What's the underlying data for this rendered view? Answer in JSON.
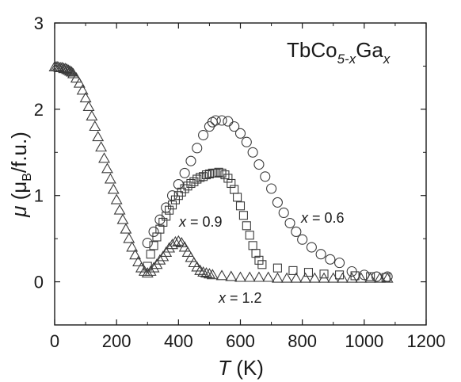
{
  "chart_data": {
    "type": "scatter",
    "title_parts": {
      "main": "TbCo",
      "sub1": "5-x",
      "main2": "Ga",
      "sub2": "x"
    },
    "xlabel": {
      "symbol": "T",
      "unit": " (K)"
    },
    "ylabel": {
      "symbol": "μ",
      "open": " (μ",
      "sub": "B",
      "close": "/f.u.)"
    },
    "xlim": [
      0,
      1200
    ],
    "ylim": [
      -0.5,
      3.0
    ],
    "xticks": [
      "0",
      "200",
      "400",
      "600",
      "800",
      "1000",
      "1200"
    ],
    "yticks": [
      "0",
      "1",
      "2",
      "3"
    ],
    "xtick_values": [
      0,
      200,
      400,
      600,
      800,
      1000,
      1200
    ],
    "ytick_values": [
      0,
      1,
      2,
      3
    ],
    "grid": false,
    "annotations": {
      "x06": {
        "var": "x",
        "text": " = 0.6"
      },
      "x09": {
        "var": "x",
        "text": " = 0.9"
      },
      "x12": {
        "var": "x",
        "text": " = 1.2"
      }
    },
    "series": [
      {
        "label": "x = 0.6",
        "marker": "circle",
        "x": [
          300,
          320,
          340,
          360,
          380,
          400,
          420,
          440,
          460,
          480,
          500,
          510,
          520,
          540,
          560,
          580,
          600,
          620,
          640,
          660,
          680,
          700,
          720,
          740,
          760,
          780,
          800,
          830,
          860,
          890,
          920,
          960,
          1000,
          1040,
          1075
        ],
        "y": [
          0.45,
          0.58,
          0.72,
          0.86,
          1.0,
          1.13,
          1.26,
          1.4,
          1.55,
          1.7,
          1.8,
          1.85,
          1.87,
          1.87,
          1.86,
          1.8,
          1.72,
          1.62,
          1.5,
          1.36,
          1.22,
          1.08,
          0.92,
          0.8,
          0.68,
          0.58,
          0.49,
          0.4,
          0.32,
          0.26,
          0.22,
          0.12,
          0.08,
          0.06,
          0.06
        ]
      },
      {
        "label": "x = 0.9",
        "marker": "square",
        "x": [
          300,
          310,
          320,
          330,
          340,
          350,
          360,
          370,
          380,
          390,
          400,
          410,
          420,
          430,
          440,
          450,
          460,
          470,
          480,
          490,
          500,
          510,
          520,
          530,
          540,
          550,
          560,
          570,
          580,
          590,
          600,
          610,
          620,
          630,
          640,
          650,
          660,
          670,
          720,
          770,
          820,
          870,
          920,
          970,
          1020,
          1070
        ],
        "y": [
          0.18,
          0.32,
          0.42,
          0.52,
          0.61,
          0.69,
          0.76,
          0.83,
          0.89,
          0.95,
          1.0,
          1.04,
          1.08,
          1.11,
          1.14,
          1.16,
          1.19,
          1.21,
          1.22,
          1.24,
          1.25,
          1.26,
          1.26,
          1.27,
          1.26,
          1.24,
          1.2,
          1.14,
          1.07,
          0.98,
          0.88,
          0.77,
          0.65,
          0.54,
          0.42,
          0.33,
          0.25,
          0.2,
          0.16,
          0.13,
          0.11,
          0.09,
          0.08,
          0.07,
          0.06,
          0.05
        ]
      },
      {
        "label": "x = 1.2",
        "marker": "triangle",
        "x": [
          0,
          5,
          10,
          15,
          20,
          25,
          30,
          35,
          40,
          45,
          50,
          55,
          60,
          70,
          80,
          90,
          100,
          110,
          120,
          130,
          140,
          150,
          160,
          170,
          180,
          190,
          200,
          210,
          220,
          230,
          240,
          250,
          260,
          270,
          280,
          290,
          300,
          310,
          320,
          330,
          340,
          350,
          360,
          370,
          380,
          390,
          400,
          410,
          420,
          430,
          440,
          450,
          460,
          470,
          480,
          490,
          500,
          510,
          540,
          570,
          600,
          630,
          660,
          690,
          720,
          750,
          780,
          810,
          840,
          870,
          900,
          930,
          960,
          990,
          1020,
          1050,
          1075
        ],
        "y": [
          2.49,
          2.49,
          2.49,
          2.48,
          2.48,
          2.48,
          2.47,
          2.47,
          2.46,
          2.45,
          2.44,
          2.43,
          2.41,
          2.36,
          2.3,
          2.22,
          2.13,
          2.03,
          1.92,
          1.8,
          1.68,
          1.56,
          1.43,
          1.31,
          1.19,
          1.07,
          0.95,
          0.83,
          0.72,
          0.61,
          0.5,
          0.4,
          0.31,
          0.23,
          0.16,
          0.12,
          0.1,
          0.12,
          0.16,
          0.2,
          0.25,
          0.29,
          0.34,
          0.39,
          0.43,
          0.46,
          0.47,
          0.45,
          0.4,
          0.34,
          0.28,
          0.22,
          0.17,
          0.13,
          0.11,
          0.1,
          0.09,
          0.08,
          0.07,
          0.06,
          0.05,
          0.05,
          0.05,
          0.05,
          0.04,
          0.04,
          0.04,
          0.04,
          0.04,
          0.04,
          0.04,
          0.04,
          0.04,
          0.04,
          0.04,
          0.04,
          0.04
        ]
      }
    ]
  }
}
